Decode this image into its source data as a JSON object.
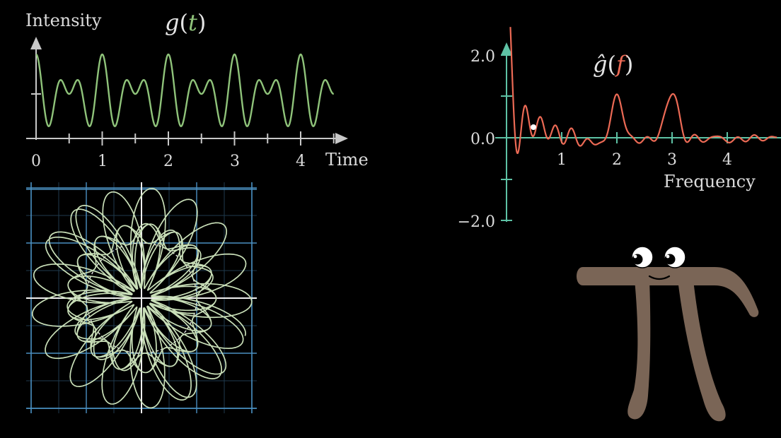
{
  "time_graph": {
    "y_label": "Intensity",
    "x_label": "Time",
    "func_name": "g",
    "func_arg": "t",
    "ticks": [
      "0",
      "1",
      "2",
      "3",
      "4"
    ],
    "curve_color": "#8fc37a",
    "axis_color": "#c8c8c8"
  },
  "freq_graph": {
    "x_label": "Frequency",
    "func_name": "ĝ",
    "func_arg": "f",
    "x_ticks": [
      "1",
      "2",
      "3",
      "4"
    ],
    "y_ticks": [
      "2.0",
      "0.0",
      "−2.0"
    ],
    "curve_color": "#ec6a55",
    "axis_color": "#5ec2a5"
  },
  "winding_plane": {
    "grid_color": "#4a8fc1",
    "curve_color": "#c9dfb8",
    "circle_color": "#e8e8e8"
  },
  "character": {
    "name": "pi-creature",
    "body_color": "#7a6556"
  }
}
